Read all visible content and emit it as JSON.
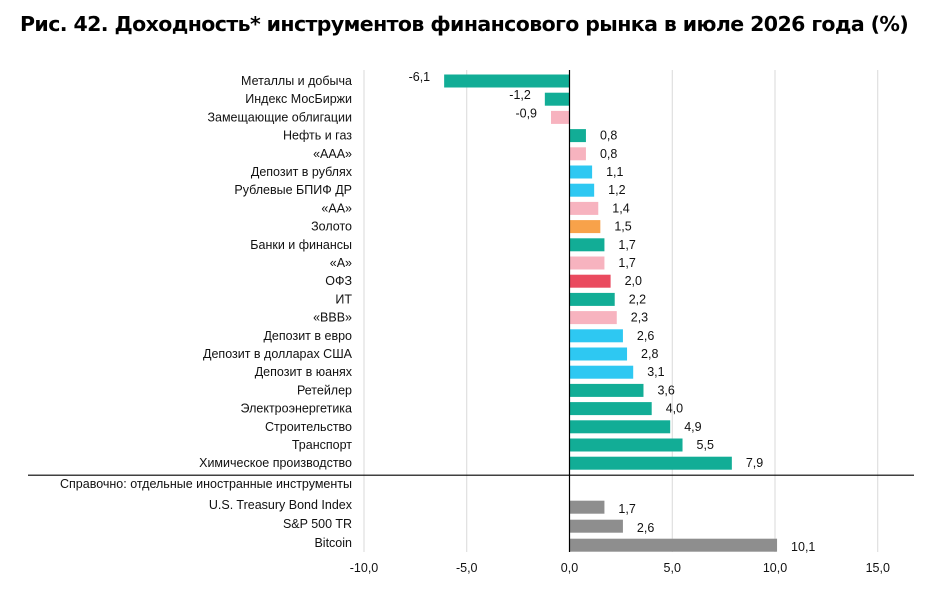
{
  "chart_data": {
    "type": "bar",
    "orientation": "horizontal",
    "title": "Рис. 42. Доходность* инструментов финансового рынка в июле 2026 года (%)",
    "xlim": [
      -10,
      15
    ],
    "x_ticks": [
      "-10,0",
      "-5,0",
      "0,0",
      "5,0",
      "10,0",
      "15,0"
    ],
    "grid": true,
    "categories": [
      "Металлы и добыча",
      "Индекс МосБиржи",
      "Замещающие облигации",
      "Нефть и газ",
      "«ААА»",
      "Депозит в рублях",
      "Рублевые БПИФ ДР",
      "«АА»",
      "Золото",
      "Банки и финансы",
      "«А»",
      "ОФЗ",
      "ИТ",
      "«ВВВ»",
      "Депозит в евро",
      "Депозит в долларах США",
      "Депозит в юанях",
      "Ретейлер",
      "Электроэнергетика",
      "Строительство",
      "Транспорт",
      "Химическое производство"
    ],
    "values": [
      -6.1,
      -1.2,
      -0.9,
      0.8,
      0.8,
      1.1,
      1.2,
      1.4,
      1.5,
      1.7,
      1.7,
      2.0,
      2.2,
      2.3,
      2.6,
      2.8,
      3.1,
      3.6,
      4.0,
      4.9,
      5.5,
      7.9
    ],
    "value_labels": [
      "-6,1",
      "-1,2",
      "-0,9",
      "0,8",
      "0,8",
      "1,1",
      "1,2",
      "1,4",
      "1,5",
      "1,7",
      "1,7",
      "2,0",
      "2,2",
      "2,3",
      "2,6",
      "2,8",
      "3,1",
      "3,6",
      "4,0",
      "4,9",
      "5,5",
      "7,9"
    ],
    "bar_colors": [
      "#12ad96",
      "#12ad96",
      "#f7b3bf",
      "#12ad96",
      "#f7b3bf",
      "#2ec8f2",
      "#2ec8f2",
      "#f7b3bf",
      "#f8a24a",
      "#12ad96",
      "#f7b3bf",
      "#ea4a5f",
      "#12ad96",
      "#f7b3bf",
      "#2ec8f2",
      "#2ec8f2",
      "#2ec8f2",
      "#12ad96",
      "#12ad96",
      "#12ad96",
      "#12ad96",
      "#12ad96"
    ],
    "reference_header": "Справочно: отдельные иностранные инструменты",
    "reference_categories": [
      "U.S. Treasury Bond Index",
      "S&P 500 TR",
      "Bitcoin"
    ],
    "reference_values": [
      1.7,
      2.6,
      10.1
    ],
    "reference_value_labels": [
      "1,7",
      "2,6",
      "10,1"
    ],
    "reference_color": "#8e8e8e",
    "palette": {
      "green": "#12ad96",
      "pink": "#f7b3bf",
      "blue": "#2ec8f2",
      "orange": "#f8a24a",
      "red": "#ea4a5f",
      "gray": "#8e8e8e"
    }
  }
}
